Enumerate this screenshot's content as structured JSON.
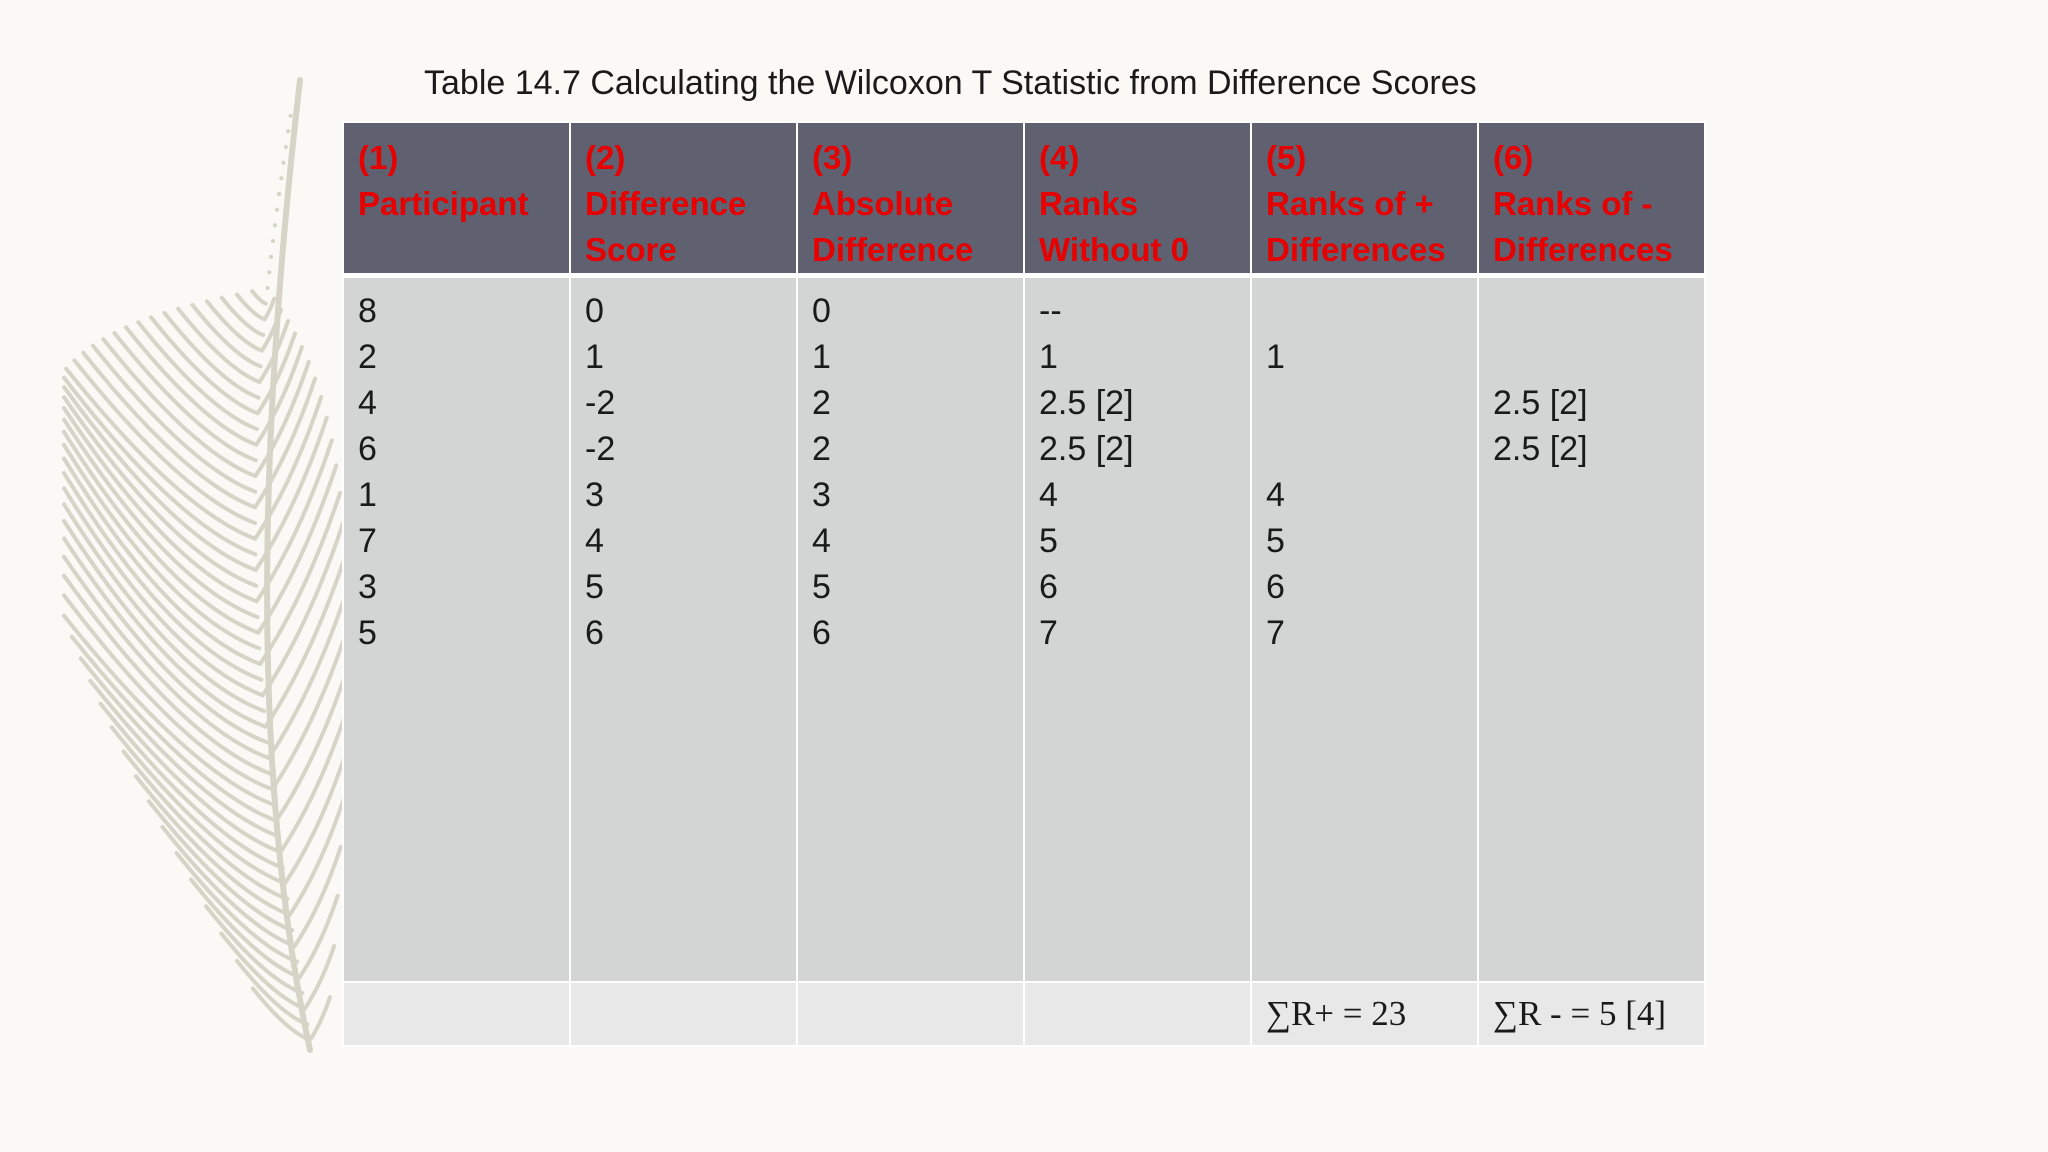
{
  "title": "Table 14.7 Calculating the Wilcoxon T Statistic from Difference Scores",
  "columns": [
    {
      "lines": [
        "(1)",
        "Participant"
      ],
      "values": [
        "8",
        "2",
        "4",
        "6",
        "1",
        "7",
        "3",
        "5"
      ],
      "sum": ""
    },
    {
      "lines": [
        "(2)",
        "Difference",
        "Score"
      ],
      "values": [
        "0",
        "1",
        "-2",
        "-2",
        "3",
        "4",
        "5",
        "6"
      ],
      "sum": ""
    },
    {
      "lines": [
        "(3)",
        "Absolute",
        "Difference"
      ],
      "values": [
        "0",
        "1",
        "2",
        "2",
        "3",
        "4",
        "5",
        "6"
      ],
      "sum": ""
    },
    {
      "lines": [
        "(4)",
        "Ranks",
        "Without 0"
      ],
      "values": [
        "--",
        "1",
        "2.5 [2]",
        "2.5 [2]",
        "4",
        "5",
        "6",
        "7"
      ],
      "sum": ""
    },
    {
      "lines": [
        "(5)",
        "Ranks of +",
        "Differences"
      ],
      "values": [
        "",
        "1",
        "",
        "",
        "4",
        "5",
        "6",
        "7"
      ],
      "sum": "∑R+ = 23"
    },
    {
      "lines": [
        "(6)",
        "Ranks of -",
        "Differences"
      ],
      "values": [
        "",
        "",
        "2.5 [2]",
        "2.5 [2]",
        "",
        "",
        "",
        ""
      ],
      "sum": "∑R - = 5 [4]"
    }
  ],
  "colors": {
    "header_bg": "#5f6070",
    "header_text": "#e60000",
    "body_bg": "#d2d5d4",
    "sum_bg": "#e8e8e8",
    "page_bg": "#fbf9f6"
  }
}
